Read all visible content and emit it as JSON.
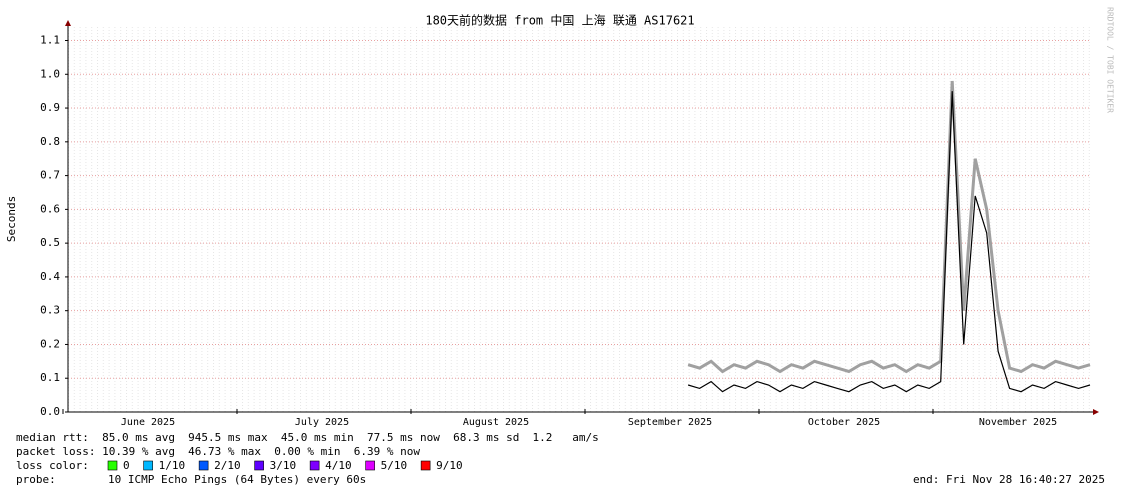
{
  "chart_data": {
    "type": "line",
    "title": "180天前的数据 from 中国 上海 联通 AS17621",
    "y_label": "Seconds",
    "watermark": "RRDTOOL / TOBI OETIKER",
    "ylim": [
      0,
      1.14
    ],
    "yticks": [
      {
        "value": 0,
        "label": "0.0"
      },
      0.1,
      0.2,
      0.3,
      0.4,
      0.5,
      0.6,
      0.7,
      0.8,
      0.9,
      {
        "value": 1,
        "label": "1.0"
      },
      1.1
    ],
    "xticks": [
      "June 2025",
      "July 2025",
      "August 2025",
      "September 2025",
      "October 2025",
      "November 2025"
    ],
    "grid": true,
    "series": [
      {
        "color": "#a0a0a0",
        "values": [
          null,
          null,
          null,
          null,
          null,
          null,
          null,
          null,
          null,
          null,
          null,
          null,
          null,
          null,
          null,
          null,
          null,
          null,
          null,
          null,
          null,
          null,
          null,
          null,
          null,
          null,
          null,
          null,
          null,
          null,
          null,
          null,
          null,
          null,
          null,
          null,
          null,
          null,
          null,
          null,
          null,
          null,
          null,
          null,
          null,
          null,
          null,
          null,
          null,
          null,
          null,
          null,
          null,
          null,
          0.14,
          0.13,
          0.15,
          0.12,
          0.14,
          0.13,
          0.15,
          0.14,
          0.12,
          0.14,
          0.13,
          0.15,
          0.14,
          0.13,
          0.12,
          0.14,
          0.15,
          0.13,
          0.14,
          0.12,
          0.14,
          0.13,
          0.15,
          0.98,
          0.3,
          0.75,
          0.6,
          0.3,
          0.13,
          0.12,
          0.14,
          0.13,
          0.15,
          0.14,
          0.13,
          0.14
        ]
      },
      {
        "name": "median rtt",
        "color": "#000000",
        "values": [
          null,
          null,
          null,
          null,
          null,
          null,
          null,
          null,
          null,
          null,
          null,
          null,
          null,
          null,
          null,
          null,
          null,
          null,
          null,
          null,
          null,
          null,
          null,
          null,
          null,
          null,
          null,
          null,
          null,
          null,
          null,
          null,
          null,
          null,
          null,
          null,
          null,
          null,
          null,
          null,
          null,
          null,
          null,
          null,
          null,
          null,
          null,
          null,
          null,
          null,
          null,
          null,
          null,
          null,
          0.08,
          0.07,
          0.09,
          0.06,
          0.08,
          0.07,
          0.09,
          0.08,
          0.06,
          0.08,
          0.07,
          0.09,
          0.08,
          0.07,
          0.06,
          0.08,
          0.09,
          0.07,
          0.08,
          0.06,
          0.08,
          0.07,
          0.09,
          0.95,
          0.2,
          0.64,
          0.53,
          0.18,
          0.07,
          0.06,
          0.08,
          0.07,
          0.09,
          0.08,
          0.07,
          0.08
        ]
      }
    ],
    "stats": [
      "median rtt:  85.0 ms avg  945.5 ms max  45.0 ms min  77.5 ms now  68.3 ms sd  1.2   am/s",
      "packet loss: 10.39 % avg  46.73 % max  0.00 % min  6.39 % now"
    ],
    "loss_label": "loss color:",
    "loss_colors": [
      {
        "label": "0",
        "color": "#26ff00"
      },
      {
        "label": "1/10",
        "color": "#00b8ff"
      },
      {
        "label": "2/10",
        "color": "#0059ff"
      },
      {
        "label": "3/10",
        "color": "#5e00ff"
      },
      {
        "label": "4/10",
        "color": "#7e00ff"
      },
      {
        "label": "5/10",
        "color": "#dd00ff"
      },
      {
        "label": "9/10",
        "color": "#ff0000"
      }
    ],
    "probe_label": "probe:",
    "probe": "10 ICMP Echo Pings (64 Bytes) every 60s",
    "end": "end: Fri Nov 28 16:40:27 2025"
  }
}
